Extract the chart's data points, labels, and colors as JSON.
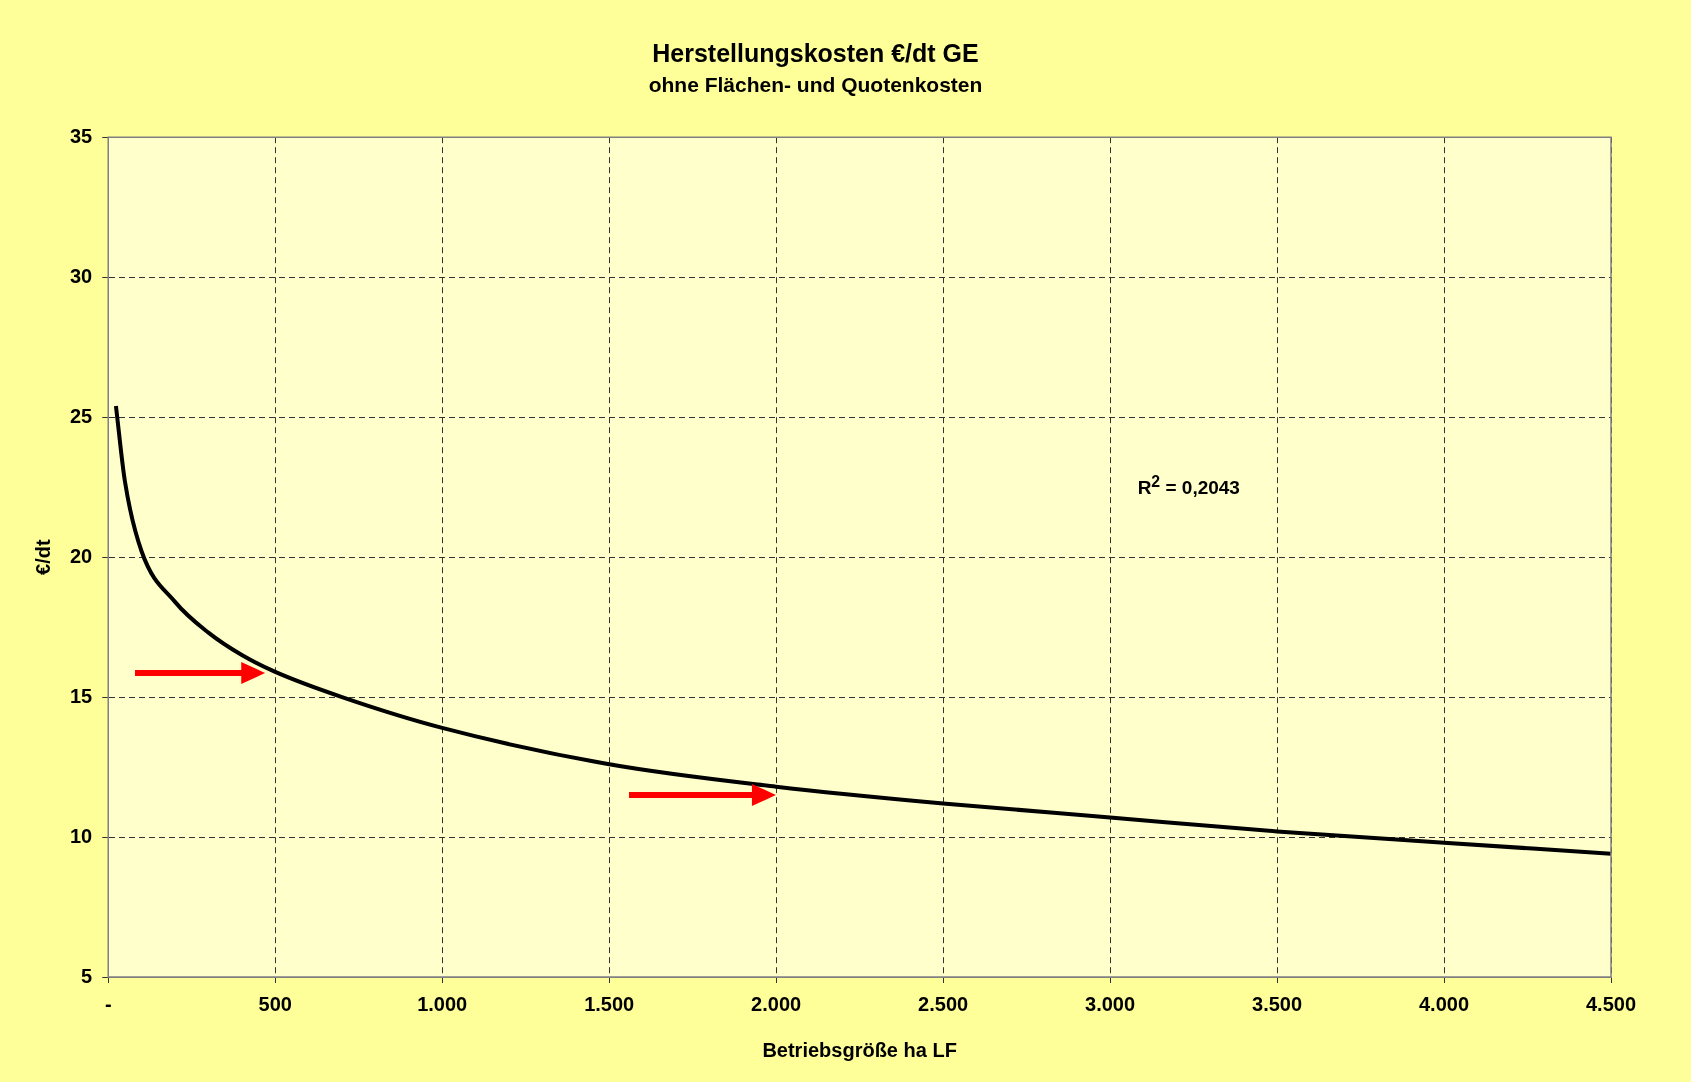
{
  "chart_data": {
    "type": "line",
    "title": "Herstellungskosten €/dt GE",
    "subtitle": "ohne Flächen- und Quotenkosten",
    "xlabel": "Betriebsgröße ha LF",
    "ylabel": "€/dt",
    "annotations": [
      "R$^{2}$ = 0,2043"
    ],
    "x": [
      23,
      50,
      100,
      200,
      300,
      400,
      500,
      700,
      1000,
      1500,
      2000,
      2500,
      3000,
      3500,
      4000,
      4500
    ],
    "series": [
      {
        "color": "#000000",
        "values": [
          25.4,
          22.7,
          20.2,
          18.4,
          17.3,
          16.5,
          15.9,
          15.0,
          13.9,
          12.6,
          11.8,
          11.2,
          10.7,
          10.2,
          9.8,
          9.4
        ]
      }
    ],
    "xlim": [
      0,
      4500
    ],
    "xticks": [
      {
        "value": 0,
        "label": "-"
      },
      {
        "value": 500,
        "label": "500"
      },
      {
        "value": 1000,
        "label": "1.000"
      },
      {
        "value": 1500,
        "label": "1.500"
      },
      {
        "value": 2000,
        "label": "2.000"
      },
      {
        "value": 2500,
        "label": "2.500"
      },
      {
        "value": 3000,
        "label": "3.000"
      },
      {
        "value": 3500,
        "label": "3.500"
      },
      {
        "value": 4000,
        "label": "4.000"
      },
      {
        "value": 4500,
        "label": "4.500"
      }
    ],
    "ylim": [
      5,
      35
    ],
    "yticks": [
      5,
      10,
      15,
      20,
      25,
      30,
      35
    ],
    "grid": true,
    "legend": false,
    "marker": "none",
    "line_style": "solid"
  }
}
